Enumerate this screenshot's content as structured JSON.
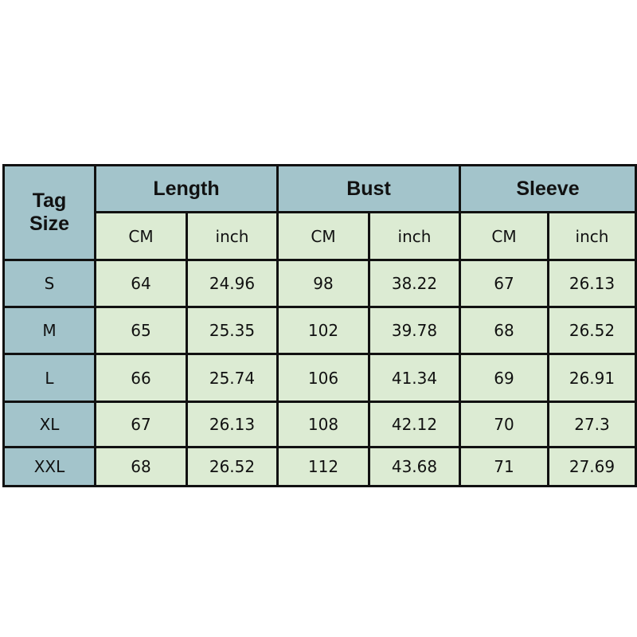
{
  "table": {
    "corner": [
      "Tag",
      "Size"
    ],
    "groups": [
      "Length",
      "Bust",
      "Sleeve"
    ],
    "units": [
      "CM",
      "inch"
    ],
    "rows": [
      {
        "size": "S",
        "values": [
          "64",
          "24.96",
          "98",
          "38.22",
          "67",
          "26.13"
        ]
      },
      {
        "size": "M",
        "values": [
          "65",
          "25.35",
          "102",
          "39.78",
          "68",
          "26.52"
        ]
      },
      {
        "size": "L",
        "values": [
          "66",
          "25.74",
          "106",
          "41.34",
          "69",
          "26.91"
        ]
      },
      {
        "size": "XL",
        "values": [
          "67",
          "26.13",
          "108",
          "42.12",
          "70",
          "27.3"
        ]
      },
      {
        "size": "XXL",
        "values": [
          "68",
          "26.52",
          "112",
          "43.68",
          "71",
          "27.69"
        ]
      }
    ]
  },
  "colors": {
    "header": "#a3c4cb",
    "cell": "#dcebd3",
    "border": "#111111"
  }
}
